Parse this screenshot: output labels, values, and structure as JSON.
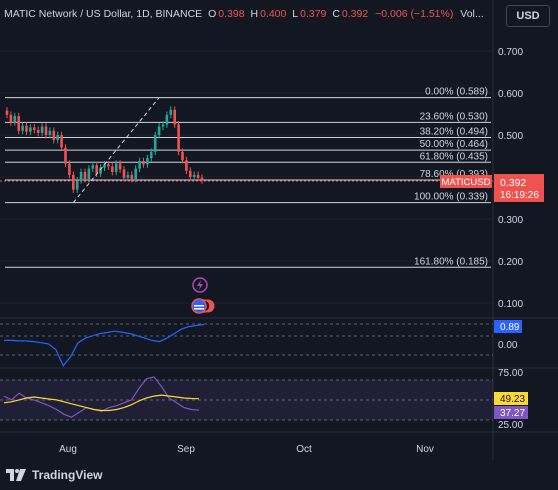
{
  "header": {
    "title": "MATIC Network / US Dollar, 1D, BINANCE",
    "open_label": "O",
    "open_value": "0.398",
    "high_label": "H",
    "high_value": "0.400",
    "low_label": "L",
    "low_value": "0.379",
    "close_label": "C",
    "close_value": "0.392",
    "change_value": "−0.006 (−1.51%)",
    "volume_label": "Vol..."
  },
  "currency_button": "USD",
  "branding": {
    "logo_text": "TradingView"
  },
  "chart_data": {
    "type": "candlestick",
    "symbol": "MATICUSD",
    "last_price_label": "0.392",
    "countdown_label": "16:19:26",
    "y_ticks": [
      "0.700",
      "0.600",
      "0.500",
      "0.400",
      "0.300",
      "0.200",
      "0.100"
    ],
    "ylim": [
      0.06,
      0.74
    ],
    "x_ticks": [
      "Aug",
      "Sep",
      "Oct",
      "Nov"
    ],
    "fib_levels": [
      {
        "label": "0.00% (0.589)",
        "value": 0.589
      },
      {
        "label": "23.60% (0.530)",
        "value": 0.53
      },
      {
        "label": "38.20% (0.494)",
        "value": 0.494
      },
      {
        "label": "50.00% (0.464)",
        "value": 0.464
      },
      {
        "label": "61.80% (0.435)",
        "value": 0.435
      },
      {
        "label": "78.60% (0.393)",
        "value": 0.393
      },
      {
        "label": "100.00% (0.339)",
        "value": 0.339
      },
      {
        "label": "161.80% (0.185)",
        "value": 0.185
      }
    ],
    "closes": [
      0.548,
      0.53,
      0.545,
      0.51,
      0.522,
      0.508,
      0.518,
      0.512,
      0.505,
      0.52,
      0.5,
      0.51,
      0.488,
      0.5,
      0.47,
      0.432,
      0.405,
      0.37,
      0.392,
      0.412,
      0.395,
      0.42,
      0.428,
      0.408,
      0.422,
      0.43,
      0.425,
      0.412,
      0.432,
      0.418,
      0.398,
      0.405,
      0.395,
      0.42,
      0.438,
      0.43,
      0.445,
      0.46,
      0.5,
      0.52,
      0.525,
      0.548,
      0.56,
      0.525,
      0.46,
      0.44,
      0.415,
      0.4,
      0.405,
      0.398,
      0.392
    ],
    "indicator_1": {
      "ticks": [
        "0.00"
      ],
      "value_label": "0.89",
      "series": [
        0.2,
        0.2,
        0.18,
        0.18,
        0.15,
        0.1,
        0.05,
        -0.2,
        -0.9,
        -0.5,
        0.1,
        0.3,
        0.4,
        0.5,
        0.55,
        0.6,
        0.55,
        0.5,
        0.4,
        0.3,
        0.2,
        0.15,
        0.3,
        0.5,
        0.7,
        0.8,
        0.85,
        0.89
      ]
    },
    "indicator_2": {
      "ticks": [
        "75.00",
        "25.00"
      ],
      "value_label_1": "49.23",
      "value_label_2": "37.27",
      "rsi": [
        52,
        48,
        55,
        50,
        48,
        45,
        42,
        38,
        33,
        30,
        35,
        40,
        38,
        36,
        40,
        42,
        45,
        48,
        60,
        70,
        72,
        62,
        50,
        45,
        40,
        38,
        37.27
      ],
      "rsi_ma": [
        45,
        46,
        48,
        50,
        51,
        50,
        49,
        48,
        46,
        44,
        42,
        40,
        38,
        37,
        37,
        38,
        40,
        43,
        47,
        50,
        52,
        53,
        52,
        51,
        50,
        49.5,
        49.23
      ]
    },
    "colors": {
      "up": "#26a69a",
      "down": "#ef5350",
      "indicator_1_line": "#2962ff",
      "rsi_line": "#7e57c2",
      "rsi_ma_line": "#fdd835",
      "background": "#131722"
    }
  }
}
